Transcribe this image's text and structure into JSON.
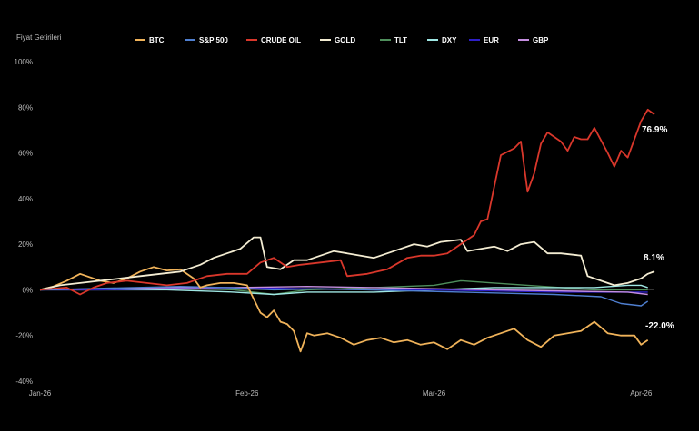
{
  "chart_data": {
    "type": "line",
    "ylabel": "Fiyat Getirileri",
    "ylim": [
      -40,
      100
    ],
    "yticks": [
      100,
      80,
      60,
      40,
      20,
      0,
      -20,
      -40
    ],
    "ytick_labels": [
      "100%",
      "80%",
      "60%",
      "40%",
      "20%",
      "0%",
      "-20%",
      "-40%"
    ],
    "xlim": [
      "2026-01-01",
      "2026-04-03"
    ],
    "xticks": [
      "2026-01-01",
      "2026-02-01",
      "2026-03-01",
      "2026-04-01"
    ],
    "xtick_labels": [
      "Jan-26",
      "Feb-26",
      "Mar-26",
      "Apr-26"
    ],
    "grid": false,
    "legend_position": "top",
    "annotations": [
      {
        "text": "76.9%",
        "series": "CRUDE OIL"
      },
      {
        "text": "8.1%",
        "series": "GOLD"
      },
      {
        "text": "-22.0%",
        "series": "BTC"
      }
    ],
    "series": [
      {
        "name": "BTC",
        "color": "#f0b35a",
        "points": [
          [
            "2026-01-01",
            0
          ],
          [
            "2026-01-03",
            1.5
          ],
          [
            "2026-01-05",
            4
          ],
          [
            "2026-01-07",
            7
          ],
          [
            "2026-01-08",
            6
          ],
          [
            "2026-01-10",
            4
          ],
          [
            "2026-01-12",
            3
          ],
          [
            "2026-01-14",
            5
          ],
          [
            "2026-01-16",
            8
          ],
          [
            "2026-01-18",
            10
          ],
          [
            "2026-01-20",
            8.5
          ],
          [
            "2026-01-22",
            9
          ],
          [
            "2026-01-24",
            5
          ],
          [
            "2026-01-25",
            1
          ],
          [
            "2026-01-26",
            2
          ],
          [
            "2026-01-28",
            3
          ],
          [
            "2026-01-30",
            3
          ],
          [
            "2026-02-01",
            2
          ],
          [
            "2026-02-03",
            -10
          ],
          [
            "2026-02-04",
            -12
          ],
          [
            "2026-02-05",
            -9
          ],
          [
            "2026-02-06",
            -14
          ],
          [
            "2026-02-07",
            -15
          ],
          [
            "2026-02-08",
            -18
          ],
          [
            "2026-02-09",
            -27
          ],
          [
            "2026-02-10",
            -19
          ],
          [
            "2026-02-11",
            -20
          ],
          [
            "2026-02-13",
            -19
          ],
          [
            "2026-02-15",
            -21
          ],
          [
            "2026-02-17",
            -24
          ],
          [
            "2026-02-19",
            -22
          ],
          [
            "2026-02-21",
            -21
          ],
          [
            "2026-02-23",
            -23
          ],
          [
            "2026-02-25",
            -22
          ],
          [
            "2026-02-27",
            -24
          ],
          [
            "2026-03-01",
            -23
          ],
          [
            "2026-03-03",
            -26
          ],
          [
            "2026-03-05",
            -22
          ],
          [
            "2026-03-07",
            -24
          ],
          [
            "2026-03-09",
            -21
          ],
          [
            "2026-03-11",
            -19
          ],
          [
            "2026-03-13",
            -17
          ],
          [
            "2026-03-15",
            -22
          ],
          [
            "2026-03-17",
            -25
          ],
          [
            "2026-03-19",
            -20
          ],
          [
            "2026-03-21",
            -19
          ],
          [
            "2026-03-23",
            -18
          ],
          [
            "2026-03-25",
            -14
          ],
          [
            "2026-03-27",
            -19
          ],
          [
            "2026-03-29",
            -20
          ],
          [
            "2026-03-31",
            -20
          ],
          [
            "2026-04-01",
            -24
          ],
          [
            "2026-04-02",
            -22
          ]
        ]
      },
      {
        "name": "S&P 500",
        "color": "#4f7fd0",
        "points": [
          [
            "2026-01-01",
            0
          ],
          [
            "2026-01-08",
            0.5
          ],
          [
            "2026-01-15",
            1
          ],
          [
            "2026-01-22",
            1.5
          ],
          [
            "2026-01-29",
            1
          ],
          [
            "2026-02-05",
            0
          ],
          [
            "2026-02-12",
            0.5
          ],
          [
            "2026-02-19",
            0
          ],
          [
            "2026-02-26",
            -0.5
          ],
          [
            "2026-03-05",
            -1
          ],
          [
            "2026-03-12",
            -1.5
          ],
          [
            "2026-03-19",
            -2
          ],
          [
            "2026-03-26",
            -3
          ],
          [
            "2026-03-29",
            -6
          ],
          [
            "2026-04-01",
            -7
          ],
          [
            "2026-04-02",
            -5
          ]
        ]
      },
      {
        "name": "CRUDE OIL",
        "color": "#d9372b",
        "points": [
          [
            "2026-01-01",
            0
          ],
          [
            "2026-01-05",
            1
          ],
          [
            "2026-01-07",
            -2
          ],
          [
            "2026-01-09",
            1
          ],
          [
            "2026-01-11",
            3
          ],
          [
            "2026-01-14",
            4
          ],
          [
            "2026-01-17",
            3
          ],
          [
            "2026-01-20",
            2
          ],
          [
            "2026-01-23",
            3
          ],
          [
            "2026-01-26",
            6
          ],
          [
            "2026-01-29",
            7
          ],
          [
            "2026-02-01",
            7
          ],
          [
            "2026-02-03",
            12
          ],
          [
            "2026-02-05",
            14
          ],
          [
            "2026-02-07",
            10
          ],
          [
            "2026-02-09",
            11
          ],
          [
            "2026-02-12",
            12
          ],
          [
            "2026-02-15",
            13
          ],
          [
            "2026-02-16",
            6
          ],
          [
            "2026-02-19",
            7
          ],
          [
            "2026-02-22",
            9
          ],
          [
            "2026-02-25",
            14
          ],
          [
            "2026-02-27",
            15
          ],
          [
            "2026-03-01",
            15
          ],
          [
            "2026-03-03",
            16
          ],
          [
            "2026-03-05",
            20
          ],
          [
            "2026-03-07",
            24
          ],
          [
            "2026-03-08",
            30
          ],
          [
            "2026-03-09",
            31
          ],
          [
            "2026-03-11",
            59
          ],
          [
            "2026-03-13",
            62
          ],
          [
            "2026-03-14",
            65
          ],
          [
            "2026-03-15",
            43
          ],
          [
            "2026-03-16",
            51
          ],
          [
            "2026-03-17",
            64
          ],
          [
            "2026-03-18",
            69
          ],
          [
            "2026-03-20",
            65
          ],
          [
            "2026-03-21",
            61
          ],
          [
            "2026-03-22",
            67
          ],
          [
            "2026-03-23",
            66
          ],
          [
            "2026-03-24",
            66
          ],
          [
            "2026-03-25",
            71
          ],
          [
            "2026-03-27",
            60
          ],
          [
            "2026-03-28",
            54
          ],
          [
            "2026-03-29",
            61
          ],
          [
            "2026-03-30",
            58
          ],
          [
            "2026-04-01",
            74
          ],
          [
            "2026-04-02",
            79
          ],
          [
            "2026-04-03",
            76.9
          ]
        ]
      },
      {
        "name": "GOLD",
        "color": "#f3ecd2",
        "points": [
          [
            "2026-01-01",
            0
          ],
          [
            "2026-01-04",
            2
          ],
          [
            "2026-01-07",
            3
          ],
          [
            "2026-01-10",
            4
          ],
          [
            "2026-01-13",
            5
          ],
          [
            "2026-01-16",
            6
          ],
          [
            "2026-01-19",
            7
          ],
          [
            "2026-01-22",
            8
          ],
          [
            "2026-01-25",
            11
          ],
          [
            "2026-01-27",
            14
          ],
          [
            "2026-01-29",
            16
          ],
          [
            "2026-01-31",
            18
          ],
          [
            "2026-02-02",
            23
          ],
          [
            "2026-02-03",
            23
          ],
          [
            "2026-02-04",
            10
          ],
          [
            "2026-02-06",
            9
          ],
          [
            "2026-02-08",
            13
          ],
          [
            "2026-02-10",
            13
          ],
          [
            "2026-02-12",
            15
          ],
          [
            "2026-02-14",
            17
          ],
          [
            "2026-02-16",
            16
          ],
          [
            "2026-02-18",
            15
          ],
          [
            "2026-02-20",
            14
          ],
          [
            "2026-02-22",
            16
          ],
          [
            "2026-02-24",
            18
          ],
          [
            "2026-02-26",
            20
          ],
          [
            "2026-02-28",
            19
          ],
          [
            "2026-03-02",
            21
          ],
          [
            "2026-03-05",
            22
          ],
          [
            "2026-03-06",
            17
          ],
          [
            "2026-03-08",
            18
          ],
          [
            "2026-03-10",
            19
          ],
          [
            "2026-03-12",
            17
          ],
          [
            "2026-03-14",
            20
          ],
          [
            "2026-03-16",
            21
          ],
          [
            "2026-03-18",
            16
          ],
          [
            "2026-03-20",
            16
          ],
          [
            "2026-03-23",
            15
          ],
          [
            "2026-03-24",
            6
          ],
          [
            "2026-03-26",
            4
          ],
          [
            "2026-03-28",
            2
          ],
          [
            "2026-03-30",
            3
          ],
          [
            "2026-04-01",
            5
          ],
          [
            "2026-04-02",
            7
          ],
          [
            "2026-04-03",
            8.1
          ]
        ]
      },
      {
        "name": "TLT",
        "color": "#4f8f5c",
        "points": [
          [
            "2026-01-01",
            0
          ],
          [
            "2026-01-10",
            0.5
          ],
          [
            "2026-01-20",
            1
          ],
          [
            "2026-01-30",
            0
          ],
          [
            "2026-02-05",
            -2
          ],
          [
            "2026-02-10",
            0
          ],
          [
            "2026-02-20",
            1
          ],
          [
            "2026-03-01",
            2
          ],
          [
            "2026-03-05",
            4
          ],
          [
            "2026-03-10",
            3
          ],
          [
            "2026-03-15",
            2
          ],
          [
            "2026-03-20",
            1
          ],
          [
            "2026-03-25",
            0
          ],
          [
            "2026-03-30",
            0
          ],
          [
            "2026-04-02",
            0
          ]
        ]
      },
      {
        "name": "DXY",
        "color": "#9fe7e4",
        "points": [
          [
            "2026-01-01",
            0
          ],
          [
            "2026-01-10",
            0
          ],
          [
            "2026-01-20",
            0
          ],
          [
            "2026-01-30",
            -1
          ],
          [
            "2026-02-05",
            -2
          ],
          [
            "2026-02-10",
            -1
          ],
          [
            "2026-02-20",
            -1
          ],
          [
            "2026-03-01",
            0
          ],
          [
            "2026-03-10",
            1
          ],
          [
            "2026-03-15",
            1
          ],
          [
            "2026-03-20",
            1
          ],
          [
            "2026-03-25",
            1
          ],
          [
            "2026-03-30",
            2
          ],
          [
            "2026-04-01",
            2
          ],
          [
            "2026-04-02",
            1
          ]
        ]
      },
      {
        "name": "EUR",
        "color": "#2e1fc8",
        "points": [
          [
            "2026-01-01",
            0
          ],
          [
            "2026-01-10",
            0
          ],
          [
            "2026-01-20",
            0.5
          ],
          [
            "2026-01-30",
            1
          ],
          [
            "2026-02-10",
            0.5
          ],
          [
            "2026-02-20",
            0
          ],
          [
            "2026-03-01",
            0
          ],
          [
            "2026-03-10",
            -0.5
          ],
          [
            "2026-03-20",
            -1
          ],
          [
            "2026-03-30",
            -1
          ],
          [
            "2026-04-02",
            -1
          ]
        ]
      },
      {
        "name": "GBP",
        "color": "#c58ee0",
        "points": [
          [
            "2026-01-01",
            0
          ],
          [
            "2026-01-10",
            0.5
          ],
          [
            "2026-01-20",
            1
          ],
          [
            "2026-01-30",
            1
          ],
          [
            "2026-02-10",
            1.5
          ],
          [
            "2026-02-20",
            1
          ],
          [
            "2026-03-01",
            0.5
          ],
          [
            "2026-03-10",
            0
          ],
          [
            "2026-03-20",
            -0.5
          ],
          [
            "2026-03-30",
            -1
          ],
          [
            "2026-04-02",
            -2
          ]
        ]
      }
    ]
  }
}
